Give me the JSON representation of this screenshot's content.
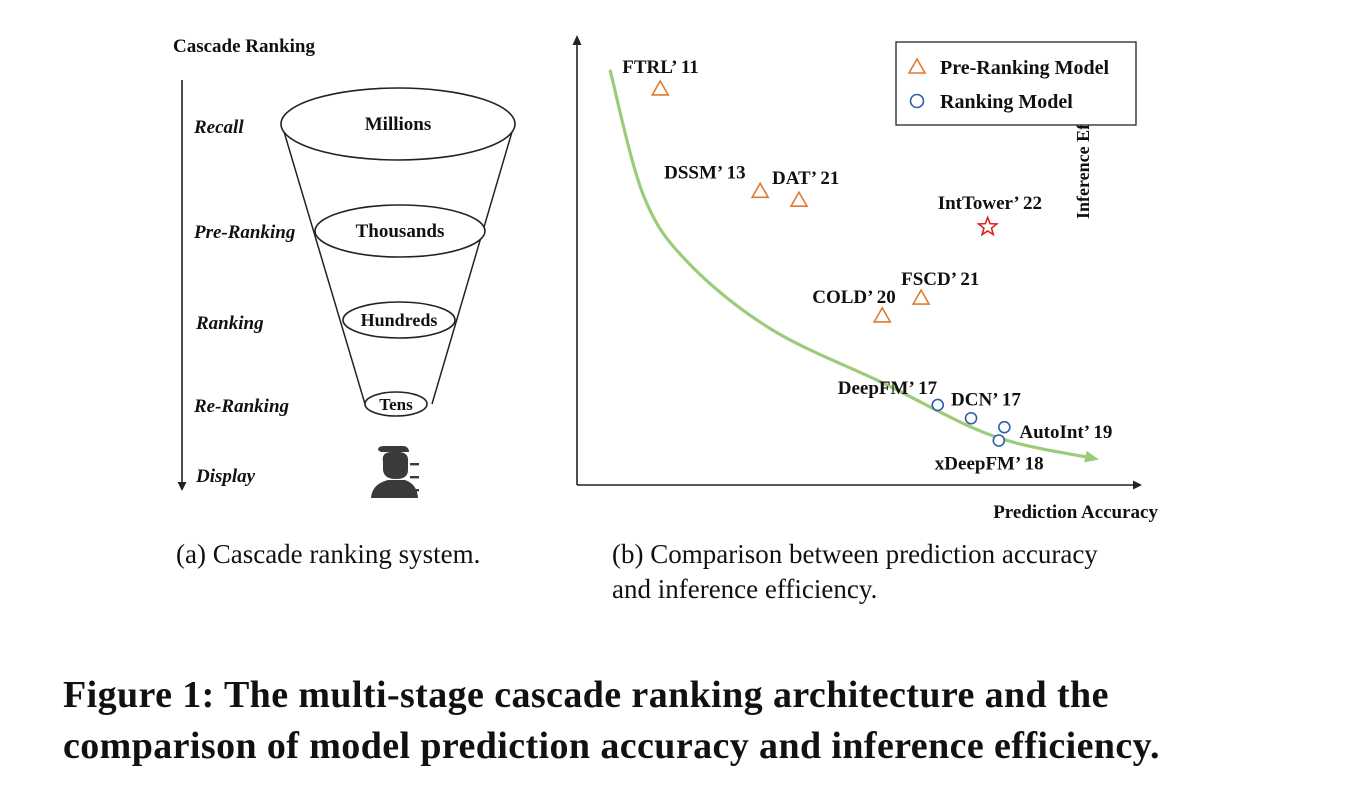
{
  "panel_a": {
    "title": "Cascade Ranking",
    "stages": [
      "Recall",
      "Pre-Ranking",
      "Ranking",
      "Re-Ranking",
      "Display"
    ],
    "funnel_levels": [
      "Millions",
      "Thousands",
      "Hundreds",
      "Tens"
    ],
    "user_icon": "user-icon",
    "caption": "(a) Cascade ranking system."
  },
  "panel_b": {
    "caption_line1": "(b) Comparison between prediction accuracy",
    "caption_line2": "and inference efficiency."
  },
  "figure_caption": {
    "label": "Figure 1:",
    "text": "The multi-stage cascade ranking architecture and the comparison of model prediction accuracy and inference efficiency."
  },
  "chart_data": {
    "type": "scatter",
    "title": "",
    "xlabel": "Prediction Accuracy",
    "ylabel": "Inference Efficiency",
    "xlim": [
      0,
      100
    ],
    "ylim": [
      0,
      100
    ],
    "grid": false,
    "legend_position": "top-right",
    "legend": [
      {
        "name": "Pre-Ranking Model",
        "marker": "triangle",
        "color": "#e07b2f"
      },
      {
        "name": "Ranking Model",
        "marker": "circle",
        "color": "#2f5fa7"
      }
    ],
    "series": [
      {
        "name": "Pre-Ranking Model",
        "marker": "triangle",
        "color": "#e07b2f",
        "points": [
          {
            "label": "FTRL’ 11",
            "x": 15,
            "y": 89
          },
          {
            "label": "DSSM’ 13",
            "x": 33,
            "y": 66
          },
          {
            "label": "DAT’ 21",
            "x": 40,
            "y": 64
          },
          {
            "label": "FSCD’ 21",
            "x": 62,
            "y": 42
          },
          {
            "label": "COLD’ 20",
            "x": 55,
            "y": 38
          }
        ]
      },
      {
        "name": "Ranking Model",
        "marker": "circle",
        "color": "#2f5fa7",
        "points": [
          {
            "label": "DeepFM’ 17",
            "x": 65,
            "y": 18
          },
          {
            "label": "DCN’ 17",
            "x": 71,
            "y": 15
          },
          {
            "label": "AutoInt’ 19",
            "x": 77,
            "y": 13
          },
          {
            "label": "xDeepFM’ 18",
            "x": 76,
            "y": 10
          }
        ]
      },
      {
        "name": "",
        "marker": "star",
        "color": "#e02020",
        "points": [
          {
            "label": "IntTower’ 22",
            "x": 74,
            "y": 58
          }
        ]
      }
    ],
    "trend_curve": {
      "color": "#9ccc7a",
      "points": [
        [
          6,
          93
        ],
        [
          12,
          65
        ],
        [
          20,
          50
        ],
        [
          35,
          35
        ],
        [
          55,
          23
        ],
        [
          75,
          11
        ],
        [
          93,
          6
        ]
      ]
    }
  }
}
